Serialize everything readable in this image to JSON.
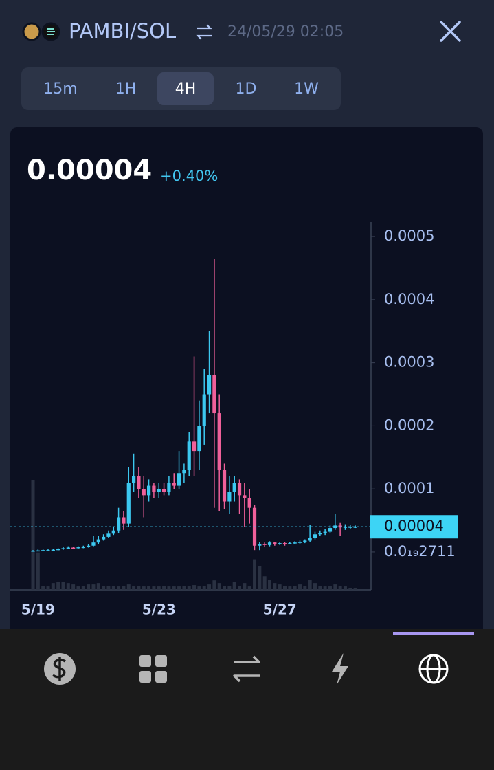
{
  "header": {
    "pair": "PAMBI/SOL",
    "datetime": "24/05/29 02:05"
  },
  "tabs": {
    "items": [
      "15m",
      "1H",
      "4H",
      "1D",
      "1W"
    ],
    "active_index": 2
  },
  "price": {
    "value": 4e-05,
    "change": "+0.40%"
  },
  "chart_data": {
    "type": "candlestick",
    "categories": [
      null,
      "5/19",
      null,
      null,
      null,
      null,
      null,
      null,
      null,
      null,
      null,
      null,
      null,
      null,
      null,
      null,
      null,
      null,
      null,
      null,
      null,
      null,
      null,
      null,
      null,
      "5/23",
      null,
      null,
      null,
      null,
      null,
      null,
      null,
      null,
      null,
      null,
      null,
      null,
      null,
      null,
      null,
      null,
      null,
      null,
      null,
      null,
      null,
      null,
      null,
      "5/27",
      null,
      null,
      null,
      null,
      null,
      null,
      null,
      null,
      null,
      null,
      null,
      null,
      null,
      null,
      null
    ],
    "open": [
      1.5e-06,
      2e-06,
      2.5e-06,
      3e-06,
      3e-06,
      3.5e-06,
      4.5e-06,
      6e-06,
      7e-06,
      6.5e-06,
      7.5e-06,
      8e-06,
      1e-05,
      1.5e-05,
      2e-05,
      2.4e-05,
      2.9e-05,
      3.4e-05,
      5.5e-05,
      4.5e-05,
      0.00011,
      0.00012,
      0.0001,
      9e-05,
      0.000105,
      9.5e-05,
      0.0001,
      9.5e-05,
      0.00011,
      0.000105,
      0.000125,
      0.00013,
      0.000175,
      0.00016,
      0.0002,
      0.00025,
      0.00028,
      0.00022,
      0.00013,
      8e-05,
      9.5e-05,
      0.00011,
      9e-05,
      8.5e-05,
      7e-05,
      1e-05,
      1.3e-05,
      1.1e-05,
      1.5e-05,
      1.3e-05,
      1.4e-05,
      1.3e-05,
      1.4e-05,
      1.5e-05,
      1.6e-05,
      1.8e-05,
      2.2e-05,
      2.8e-05,
      3e-05,
      3.2e-05,
      3.8e-05,
      4.2e-05,
      3.9e-05,
      4e-05,
      4e-05
    ],
    "high": [
      3e-06,
      4e-06,
      4e-06,
      4.5e-06,
      5e-06,
      6e-06,
      8e-06,
      9e-06,
      8.5e-06,
      9e-06,
      1e-05,
      1.3e-05,
      2.5e-05,
      2.6e-05,
      2.8e-05,
      3.4e-05,
      4e-05,
      7e-05,
      6.5e-05,
      0.000135,
      0.000156,
      0.000135,
      0.00012,
      0.000115,
      0.00011,
      0.00011,
      0.00011,
      0.00012,
      0.000125,
      0.00016,
      0.00014,
      0.00019,
      0.00031,
      0.00024,
      0.00029,
      0.00035,
      0.000465,
      0.00025,
      0.00014,
      0.00012,
      0.00012,
      0.000115,
      0.00011,
      0.0001,
      7.5e-05,
      1.6e-05,
      1.5e-05,
      1.7e-05,
      1.6e-05,
      1.6e-05,
      1.6e-05,
      1.6e-05,
      1.7e-05,
      1.8e-05,
      2e-05,
      4.3e-05,
      3.2e-05,
      3.4e-05,
      3.6e-05,
      4.2e-05,
      6e-05,
      4.6e-05,
      4.4e-05,
      4.3e-05,
      4.2e-05
    ],
    "low": [
      1e-06,
      1e-06,
      1.5e-06,
      2e-06,
      2e-06,
      2.5e-06,
      3.5e-06,
      5e-06,
      5e-06,
      5.5e-06,
      6e-06,
      7e-06,
      9e-06,
      1.3e-05,
      1.8e-05,
      2.2e-05,
      2.7e-05,
      3e-05,
      3.5e-05,
      4e-05,
      9.5e-05,
      8.5e-05,
      5.5e-05,
      8e-05,
      8.5e-05,
      8.5e-05,
      9e-05,
      9e-05,
      0.0001,
      0.0001,
      0.00011,
      0.00012,
      0.00012,
      0.00013,
      0.00017,
      0.00022,
      7e-05,
      6.5e-05,
      6.8e-05,
      6e-05,
      8e-05,
      6e-05,
      4e-05,
      4.5e-05,
      3e-06,
      3e-06,
      8e-06,
      9e-06,
      1e-05,
      1.1e-05,
      1e-05,
      1.2e-05,
      1.2e-05,
      1.3e-05,
      1.4e-05,
      1.6e-05,
      2e-05,
      2.5e-05,
      2.7e-05,
      3e-05,
      3.5e-05,
      2.5e-05,
      3.5e-05,
      3.7e-05,
      3.8e-05
    ],
    "close": [
      2e-06,
      2.5e-06,
      3e-06,
      3e-06,
      3.5e-06,
      4.5e-06,
      6e-06,
      7e-06,
      6.5e-06,
      7.5e-06,
      8e-06,
      1e-05,
      1.5e-05,
      2e-05,
      2.4e-05,
      2.9e-05,
      3.4e-05,
      5.5e-05,
      4.5e-05,
      0.00011,
      0.00012,
      0.0001,
      9e-05,
      0.000105,
      9.5e-05,
      0.0001,
      9.5e-05,
      0.00011,
      0.000105,
      0.000125,
      0.00013,
      0.000175,
      0.00016,
      0.0002,
      0.00025,
      0.00028,
      0.00022,
      0.00013,
      8e-05,
      9.5e-05,
      0.00011,
      9e-05,
      8.5e-05,
      7e-05,
      1e-05,
      1.3e-05,
      1.1e-05,
      1.5e-05,
      1.3e-05,
      1.4e-05,
      1.3e-05,
      1.4e-05,
      1.5e-05,
      1.6e-05,
      1.8e-05,
      2.2e-05,
      2.8e-05,
      3e-05,
      3.2e-05,
      3.8e-05,
      4.2e-05,
      3.9e-05,
      4e-05,
      4e-05,
      4e-05
    ],
    "volume": [
      162,
      55,
      6,
      5,
      10,
      12,
      12,
      10,
      8,
      5,
      6,
      8,
      8,
      10,
      6,
      6,
      6,
      5,
      6,
      8,
      6,
      6,
      5,
      6,
      5,
      5,
      6,
      5,
      5,
      5,
      6,
      6,
      7,
      5,
      6,
      8,
      14,
      10,
      6,
      6,
      12,
      6,
      10,
      5,
      45,
      35,
      20,
      15,
      10,
      8,
      6,
      5,
      6,
      8,
      6,
      15,
      10,
      6,
      5,
      6,
      8,
      6,
      5,
      3,
      2
    ],
    "up_color": "#3cc8f0",
    "down_color": "#f0609a",
    "volume_color": "#2a3142",
    "ylim": [
      -6e-05,
      0.000523
    ],
    "yticks": [
      0.0005,
      0.0004,
      0.0003,
      0.0002,
      0.0001,
      {
        "value": 2.711e-20,
        "label": "0.0₁₉2711"
      }
    ],
    "current_price": 4e-05
  }
}
